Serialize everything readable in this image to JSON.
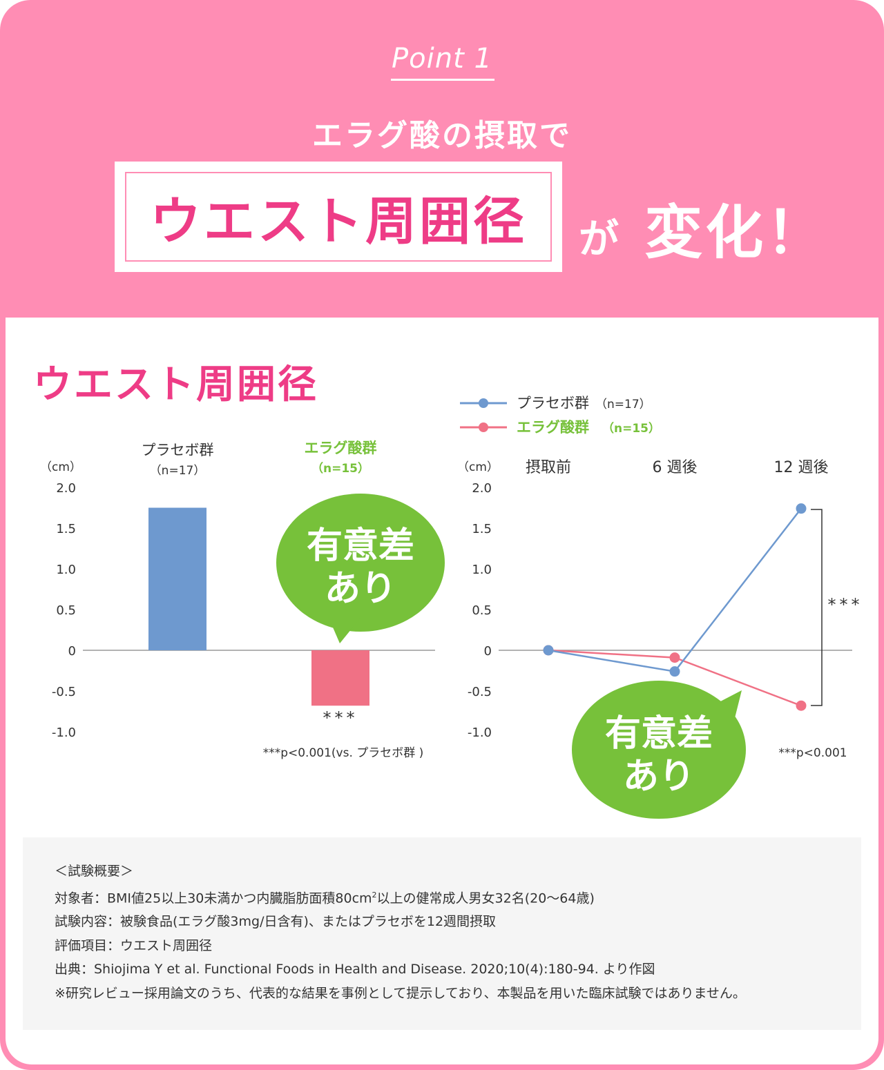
{
  "header": {
    "point_label": "Point 1",
    "subtitle": "エラグ酸の摂取で",
    "highlight": "ウエスト周囲径",
    "suffix_small": "が",
    "suffix_large": "変化！"
  },
  "section_title": "ウエスト周囲径",
  "bubble": {
    "line1": "有意差",
    "line2": "あり"
  },
  "colors": {
    "placebo": "#6e99cf",
    "ellagic": "#f07185",
    "accent_green": "#77c13a",
    "accent_pink": "#ee3c86",
    "header_bg": "#ff8db4"
  },
  "chart_data": [
    {
      "type": "bar",
      "unit": "（cm）",
      "ylim": [
        -1.0,
        2.0
      ],
      "yticks": [
        "2.0",
        "1.5",
        "1.0",
        "0.5",
        "0",
        "-0.5",
        "-1.0"
      ],
      "ytick_values": [
        2.0,
        1.5,
        1.0,
        0.5,
        0,
        -0.5,
        -1.0
      ],
      "categories": [
        {
          "name": "プラセボ群",
          "n": "（n=17）",
          "value": 1.75,
          "color": "#6e99cf"
        },
        {
          "name": "エラグ酸群",
          "n": "（n=15）",
          "value": -0.68,
          "color": "#f07185",
          "annotation": "***"
        }
      ],
      "footnote": "***p<0.001(vs. プラセボ群 )"
    },
    {
      "type": "line",
      "unit": "（cm）",
      "ylim": [
        -1.0,
        2.0
      ],
      "yticks": [
        "2.0",
        "1.5",
        "1.0",
        "0.5",
        "0",
        "-0.5",
        "-1.0"
      ],
      "ytick_values": [
        2.0,
        1.5,
        1.0,
        0.5,
        0,
        -0.5,
        -1.0
      ],
      "x": [
        "摂取前",
        "6 週後",
        "12 週後"
      ],
      "series": [
        {
          "name": "プラセボ群",
          "n": "（n=17）",
          "values": [
            0,
            -0.26,
            1.74
          ],
          "color": "#6e99cf"
        },
        {
          "name": "エラグ酸群",
          "n": "（n=15）",
          "values": [
            0,
            -0.09,
            -0.68
          ],
          "color": "#f07185"
        }
      ],
      "legend": "top-left",
      "significance": "***",
      "footnote": "***p<0.001"
    }
  ],
  "notes": {
    "title": "＜試験概要＞",
    "subjects_a": "対象者：BMI値25以上30未満かつ内臓脂肪面積80cm",
    "subjects_sup": "2",
    "subjects_b": "以上の健常成人男女32名(20～64歳)",
    "content": "試験内容：被験食品(エラグ酸3mg/日含有)、またはプラセボを12週間摂取",
    "evaluation": "評価項目：ウエスト周囲径",
    "source": "出典：Shiojima Y et al. Functional Foods in Health and Disease. 2020;10(4):180-94. より作図",
    "disclaimer": "※研究レビュー採用論文のうち、代表的な結果を事例として提示しており、本製品を用いた臨床試験ではありません。"
  }
}
